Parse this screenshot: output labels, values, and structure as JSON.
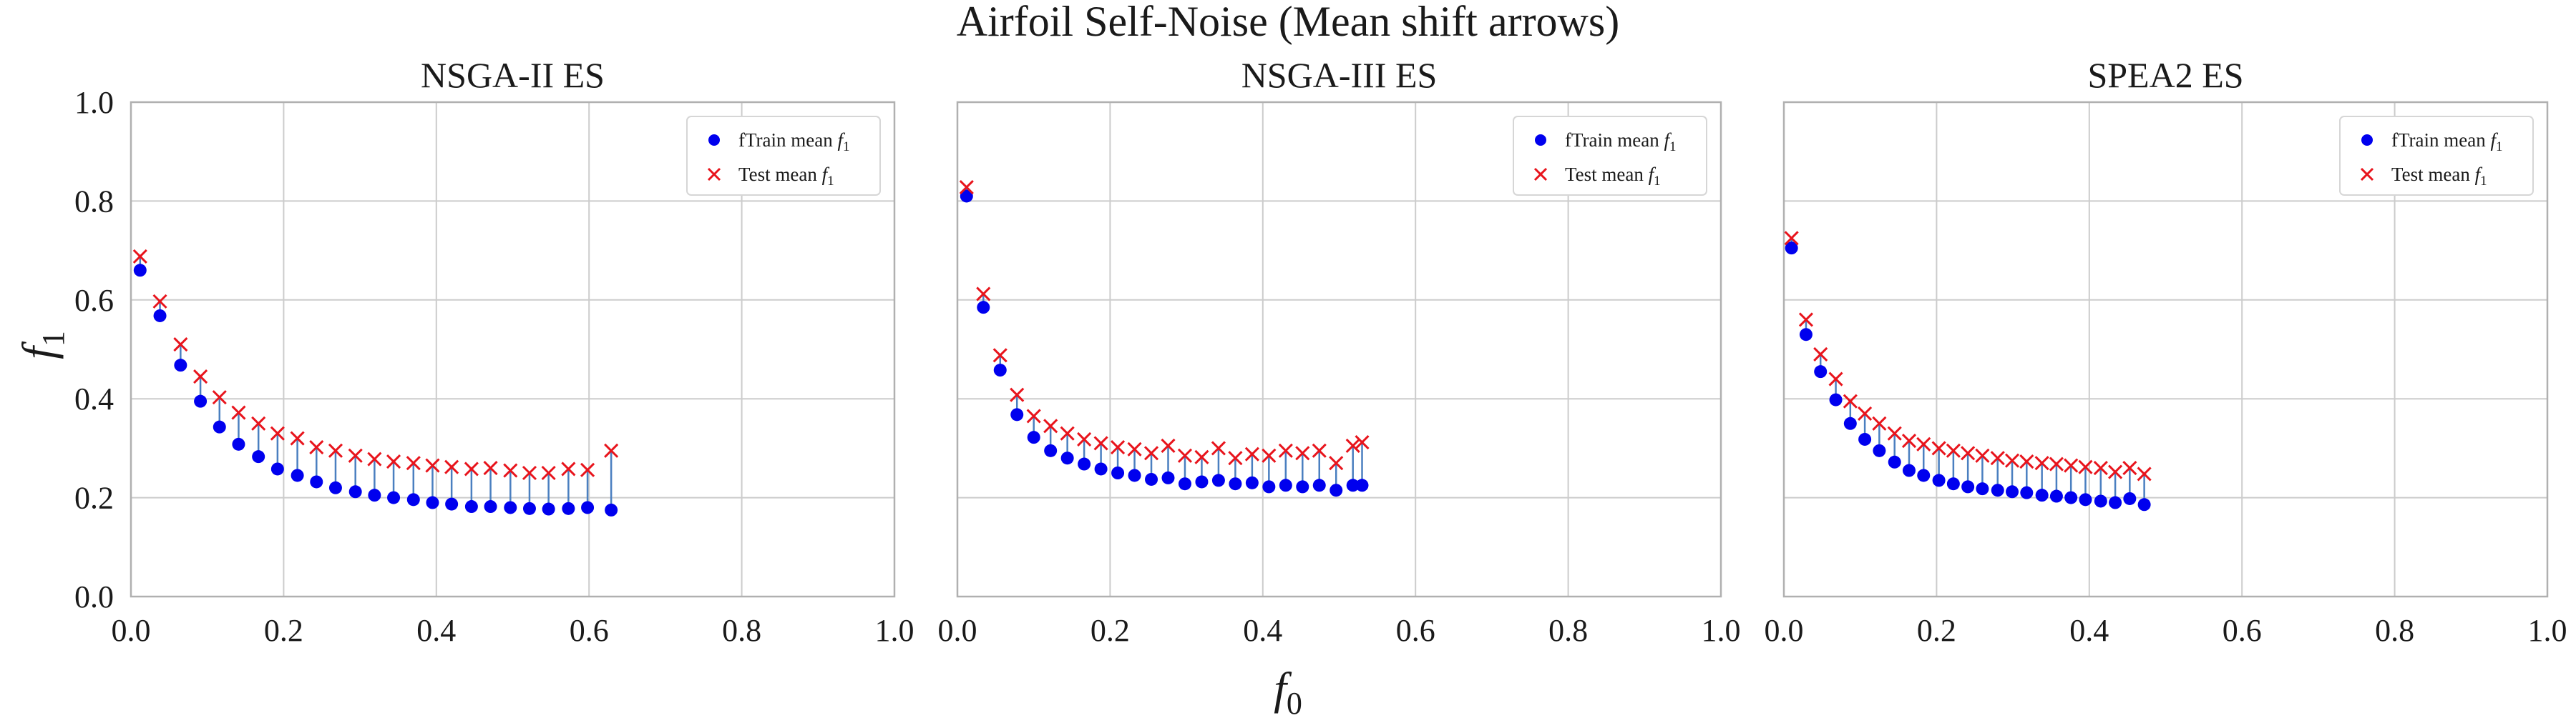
{
  "figure": {
    "title": "Airfoil Self-Noise (Mean shift arrows)",
    "xlabel_main": "f",
    "xlabel_sub": "0",
    "ylabel_main": "f",
    "ylabel_sub": "1"
  },
  "colors": {
    "train": "#0000ee",
    "test": "#e8141c",
    "arrow": "#4a7fc0",
    "grid": "#cccccc",
    "frame": "#b0b0b0"
  },
  "chart_data": [
    {
      "type": "scatter",
      "title": "NSGA-II ES",
      "xlim": [
        0,
        1
      ],
      "ylim": [
        0,
        1
      ],
      "xticks": [
        "0.0",
        "0.2",
        "0.4",
        "0.6",
        "0.8",
        "1.0"
      ],
      "yticks": [
        "0.0",
        "0.2",
        "0.4",
        "0.6",
        "0.8",
        "1.0"
      ],
      "grid": true,
      "legend": {
        "position": "top-right",
        "entries": [
          {
            "main": "fTrain mean ",
            "sym": "f",
            "sub": "1",
            "marker": "circle"
          },
          {
            "main": "Test mean ",
            "sym": "f",
            "sub": "1",
            "marker": "x"
          }
        ]
      },
      "series": [
        {
          "name": "fTrain mean f1",
          "x": [
            0.012,
            0.038,
            0.065,
            0.091,
            0.116,
            0.141,
            0.167,
            0.192,
            0.218,
            0.243,
            0.268,
            0.294,
            0.319,
            0.344,
            0.37,
            0.395,
            0.42,
            0.446,
            0.471,
            0.497,
            0.522,
            0.547,
            0.573,
            0.598,
            0.629
          ],
          "y": [
            0.66,
            0.568,
            0.468,
            0.395,
            0.343,
            0.308,
            0.283,
            0.258,
            0.245,
            0.232,
            0.22,
            0.212,
            0.205,
            0.2,
            0.196,
            0.19,
            0.187,
            0.182,
            0.182,
            0.18,
            0.178,
            0.177,
            0.178,
            0.18,
            0.175
          ]
        },
        {
          "name": "Test mean f1",
          "x": [
            0.012,
            0.038,
            0.065,
            0.091,
            0.116,
            0.141,
            0.167,
            0.192,
            0.218,
            0.243,
            0.268,
            0.294,
            0.319,
            0.344,
            0.37,
            0.395,
            0.42,
            0.446,
            0.471,
            0.497,
            0.522,
            0.547,
            0.573,
            0.598,
            0.629
          ],
          "y": [
            0.688,
            0.597,
            0.51,
            0.445,
            0.403,
            0.372,
            0.35,
            0.33,
            0.32,
            0.302,
            0.295,
            0.285,
            0.278,
            0.273,
            0.27,
            0.265,
            0.262,
            0.258,
            0.26,
            0.255,
            0.25,
            0.25,
            0.258,
            0.256,
            0.295
          ]
        }
      ]
    },
    {
      "type": "scatter",
      "title": "NSGA-III ES",
      "xlim": [
        0,
        1
      ],
      "ylim": [
        0,
        1
      ],
      "xticks": [
        "0.0",
        "0.2",
        "0.4",
        "0.6",
        "0.8",
        "1.0"
      ],
      "yticks": [
        "0.0",
        "0.2",
        "0.4",
        "0.6",
        "0.8",
        "1.0"
      ],
      "grid": true,
      "legend": {
        "position": "top-right",
        "entries": [
          {
            "main": "fTrain mean ",
            "sym": "f",
            "sub": "1",
            "marker": "circle"
          },
          {
            "main": "Test mean ",
            "sym": "f",
            "sub": "1",
            "marker": "x"
          }
        ]
      },
      "series": [
        {
          "name": "fTrain mean f1",
          "x": [
            0.012,
            0.034,
            0.056,
            0.078,
            0.1,
            0.122,
            0.144,
            0.166,
            0.188,
            0.21,
            0.232,
            0.254,
            0.276,
            0.298,
            0.32,
            0.342,
            0.364,
            0.386,
            0.408,
            0.43,
            0.452,
            0.474,
            0.496,
            0.518,
            0.53
          ],
          "y": [
            0.81,
            0.585,
            0.458,
            0.368,
            0.322,
            0.295,
            0.28,
            0.268,
            0.258,
            0.25,
            0.245,
            0.237,
            0.24,
            0.228,
            0.232,
            0.235,
            0.228,
            0.23,
            0.222,
            0.225,
            0.222,
            0.225,
            0.215,
            0.225,
            0.225
          ]
        },
        {
          "name": "Test mean f1",
          "x": [
            0.012,
            0.034,
            0.056,
            0.078,
            0.1,
            0.122,
            0.144,
            0.166,
            0.188,
            0.21,
            0.232,
            0.254,
            0.276,
            0.298,
            0.32,
            0.342,
            0.364,
            0.386,
            0.408,
            0.43,
            0.452,
            0.474,
            0.496,
            0.518,
            0.53
          ],
          "y": [
            0.828,
            0.612,
            0.488,
            0.408,
            0.365,
            0.345,
            0.33,
            0.318,
            0.31,
            0.302,
            0.298,
            0.29,
            0.305,
            0.285,
            0.282,
            0.3,
            0.28,
            0.288,
            0.285,
            0.295,
            0.29,
            0.295,
            0.27,
            0.305,
            0.312
          ]
        }
      ]
    },
    {
      "type": "scatter",
      "title": "SPEA2 ES",
      "xlim": [
        0,
        1
      ],
      "ylim": [
        0,
        1
      ],
      "xticks": [
        "0.0",
        "0.2",
        "0.4",
        "0.6",
        "0.8",
        "1.0"
      ],
      "yticks": [
        "0.0",
        "0.2",
        "0.4",
        "0.6",
        "0.8",
        "1.0"
      ],
      "grid": true,
      "legend": {
        "position": "top-right",
        "entries": [
          {
            "main": "fTrain mean ",
            "sym": "f",
            "sub": "1",
            "marker": "circle"
          },
          {
            "main": "Test mean ",
            "sym": "f",
            "sub": "1",
            "marker": "x"
          }
        ]
      },
      "series": [
        {
          "name": "fTrain mean f1",
          "x": [
            0.01,
            0.029,
            0.048,
            0.068,
            0.087,
            0.106,
            0.125,
            0.145,
            0.164,
            0.183,
            0.203,
            0.222,
            0.241,
            0.26,
            0.28,
            0.299,
            0.318,
            0.338,
            0.357,
            0.376,
            0.395,
            0.415,
            0.434,
            0.453,
            0.472
          ],
          "y": [
            0.705,
            0.53,
            0.455,
            0.398,
            0.35,
            0.318,
            0.295,
            0.272,
            0.255,
            0.245,
            0.235,
            0.228,
            0.222,
            0.218,
            0.215,
            0.212,
            0.21,
            0.205,
            0.203,
            0.2,
            0.196,
            0.193,
            0.19,
            0.198,
            0.186
          ]
        },
        {
          "name": "Test mean f1",
          "x": [
            0.01,
            0.029,
            0.048,
            0.068,
            0.087,
            0.106,
            0.125,
            0.145,
            0.164,
            0.183,
            0.203,
            0.222,
            0.241,
            0.26,
            0.28,
            0.299,
            0.318,
            0.338,
            0.357,
            0.376,
            0.395,
            0.415,
            0.434,
            0.453,
            0.472
          ],
          "y": [
            0.725,
            0.56,
            0.49,
            0.44,
            0.395,
            0.37,
            0.35,
            0.33,
            0.315,
            0.308,
            0.3,
            0.295,
            0.29,
            0.285,
            0.28,
            0.275,
            0.273,
            0.27,
            0.268,
            0.265,
            0.262,
            0.26,
            0.252,
            0.26,
            0.248
          ]
        }
      ]
    }
  ]
}
